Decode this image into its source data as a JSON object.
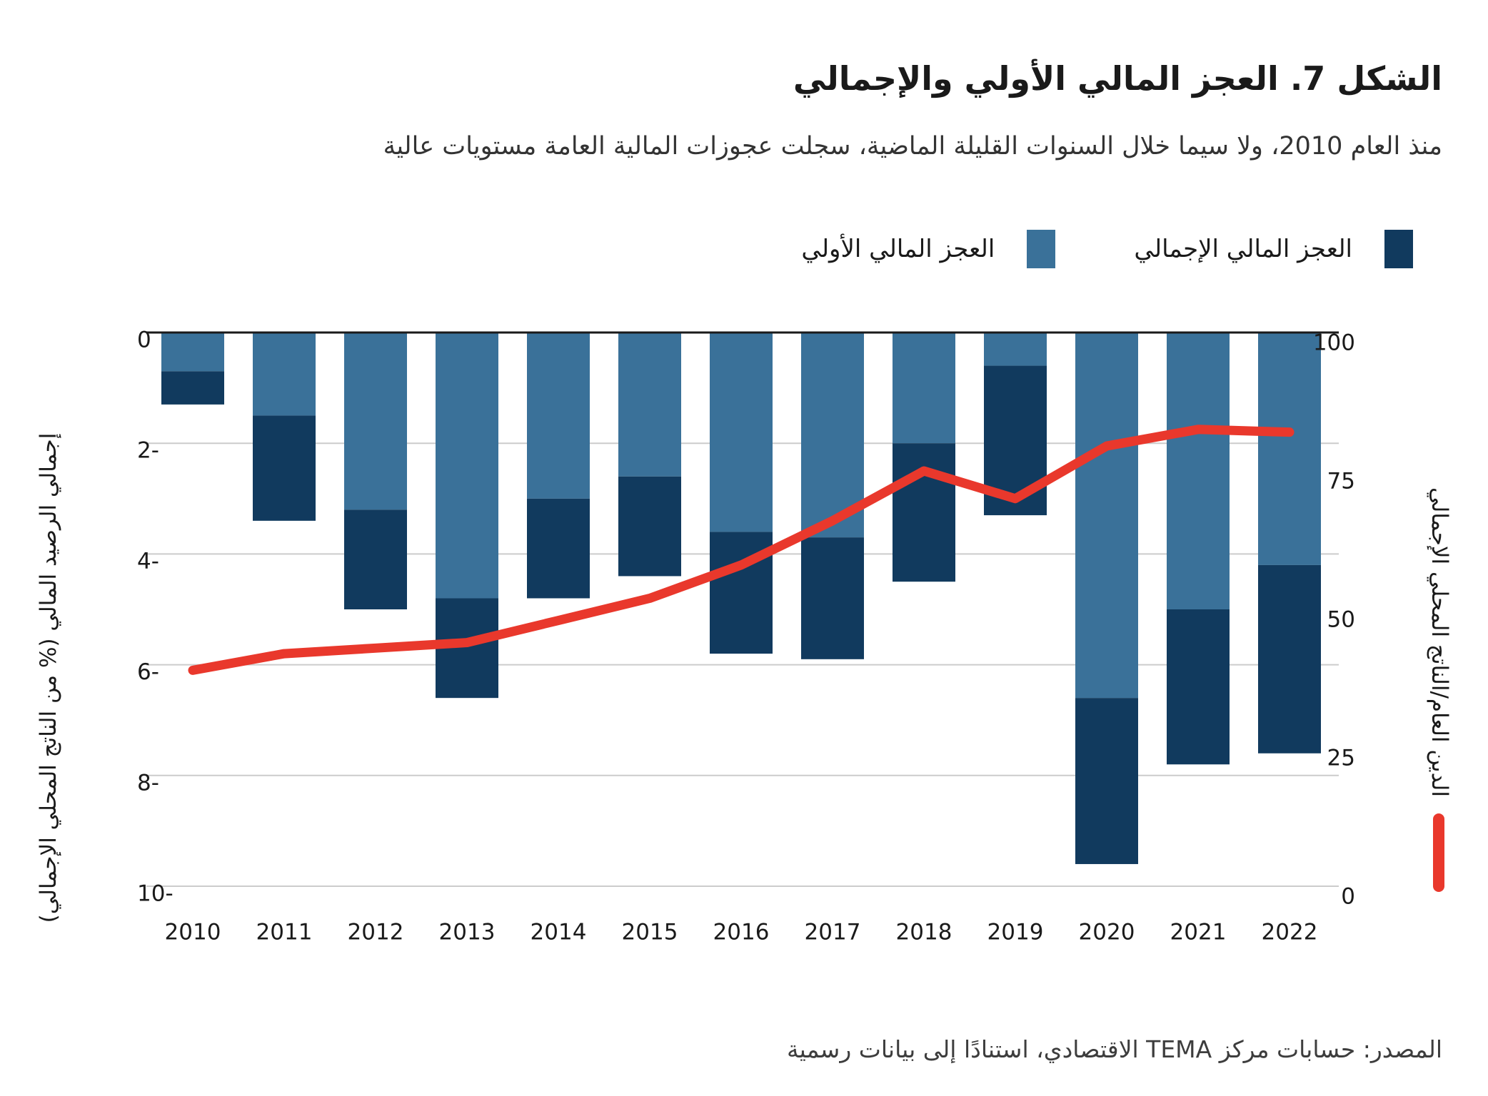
{
  "header": {
    "title": "الشكل 7. العجز المالي الأولي والإجمالي",
    "subtitle": "منذ العام 2010، ولا سيما خلال السنوات القليلة الماضية، سجلت عجوزات المالية العامة مستويات عالية"
  },
  "legend": {
    "overall_label": "العجز المالي الإجمالي",
    "primary_label": "العجز المالي الأولي"
  },
  "footer": {
    "source": "المصدر: حسابات مركز TEMA الاقتصادي، استنادًا إلى بيانات رسمية"
  },
  "colors": {
    "primary_deficit": "#3A7199",
    "overall_deficit": "#113A5E",
    "debt_line": "#E9382C",
    "gridline": "#cccccc",
    "zero_line": "#1a1a1a"
  },
  "chart_data": {
    "type": "bar",
    "subtype": "stacked-bars-with-line-dual-axis",
    "categories": [
      "2010",
      "2011",
      "2012",
      "2013",
      "2014",
      "2015",
      "2016",
      "2017",
      "2018",
      "2019",
      "2020",
      "2021",
      "2022"
    ],
    "series": [
      {
        "name": "العجز المالي الأولي",
        "type": "bar",
        "axis": "left",
        "color": "#3A7199",
        "values": [
          -0.7,
          -1.5,
          -3.2,
          -4.8,
          -3.0,
          -2.6,
          -3.6,
          -3.7,
          -2.0,
          -0.6,
          -6.6,
          -5.0,
          -4.2
        ]
      },
      {
        "name": "العجز المالي الإجمالي",
        "type": "bar",
        "axis": "left",
        "color": "#113A5E",
        "values": [
          -1.3,
          -3.4,
          -5.0,
          -6.6,
          -4.8,
          -4.4,
          -5.8,
          -5.9,
          -4.5,
          -3.3,
          -9.6,
          -7.8,
          -7.6
        ]
      },
      {
        "name": "الدين العام/الناتج المحلي الإجمالي",
        "type": "line",
        "axis": "right",
        "color": "#E9382C",
        "values": [
          39,
          42,
          43,
          44,
          48,
          52,
          58,
          66,
          75,
          70,
          79.5,
          82.5,
          82
        ]
      }
    ],
    "left_axis": {
      "label": "إجمالي الرصيد المالي (% من الناتج المحلي الإجمالي)",
      "ticks": [
        0,
        -2,
        -4,
        -6,
        -8,
        -10
      ],
      "range": [
        0,
        -10
      ]
    },
    "right_axis": {
      "label": "الدين العام/الناتج المحلي الإجمالي",
      "ticks": [
        100,
        75,
        50,
        25,
        0
      ],
      "range": [
        0,
        100
      ]
    },
    "grid": "horizontal",
    "legend_position": "top-right"
  }
}
